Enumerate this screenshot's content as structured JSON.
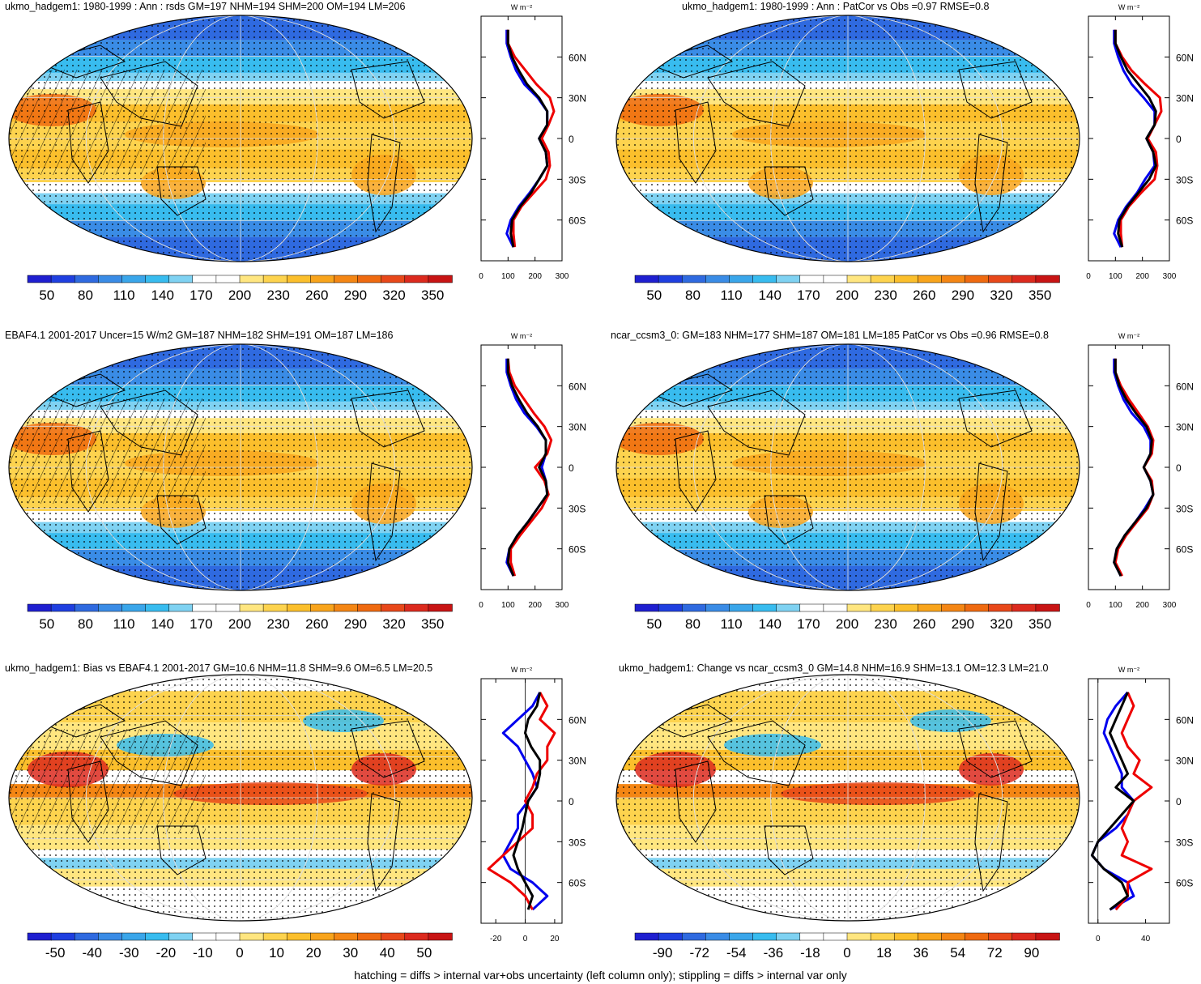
{
  "footer": "hatching = diffs > internal var+obs uncertainty (left column only); stippling = diffs > internal var only",
  "profile_unit": "W m⁻²",
  "colors": {
    "neg": [
      "#1f1fd0",
      "#1f3fe0",
      "#2f6ae0",
      "#3a8ce6",
      "#3aa6ea",
      "#38bcef",
      "#7fd2f2",
      "#ffffff"
    ],
    "pos": [
      "#ffffff",
      "#ffe680",
      "#fdd34e",
      "#fbbf2c",
      "#f8a41c",
      "#f48614",
      "#ef6a10",
      "#e8481a",
      "#dc2a1e",
      "#c81414"
    ],
    "model": "#000000",
    "obs": "#0000ee",
    "alt": "#ee0000"
  },
  "chart_data": [
    {
      "id": "p1",
      "type": "heatmap",
      "title": "ukmo_hadgem1: 1980-1999 : Ann : rsds GM=197 NHM=194 SHM=200 OM=194 LM=206",
      "colorbar_ticks": [
        "50",
        "80",
        "110",
        "140",
        "170",
        "200",
        "230",
        "260",
        "290",
        "320",
        "350"
      ],
      "colorbar_range": [
        35,
        365
      ],
      "lat_ticks": [
        "60N",
        "30N",
        "0",
        "30S",
        "60S"
      ],
      "profile_xticks": [
        "0",
        "100",
        "200",
        "300"
      ],
      "profile_xlim": [
        0,
        300
      ],
      "zonal_profile": {
        "lat": [
          80,
          70,
          60,
          50,
          40,
          30,
          20,
          10,
          0,
          -10,
          -20,
          -30,
          -40,
          -50,
          -60,
          -70,
          -80
        ],
        "black": [
          100,
          100,
          115,
          140,
          170,
          215,
          245,
          245,
          215,
          240,
          245,
          215,
          185,
          145,
          115,
          110,
          120
        ],
        "blue": [
          95,
          95,
          110,
          130,
          160,
          210,
          245,
          245,
          215,
          240,
          245,
          215,
          180,
          140,
          110,
          95,
          120
        ],
        "red": [
          100,
          100,
          125,
          165,
          205,
          255,
          270,
          250,
          225,
          250,
          255,
          240,
          195,
          150,
          120,
          120,
          125
        ]
      },
      "hatching": true
    },
    {
      "id": "p2",
      "type": "heatmap",
      "title": "ukmo_hadgem1: 1980-1999 : Ann : PatCor vs Obs =0.97 RMSE=0.8",
      "colorbar_ticks": [
        "50",
        "80",
        "110",
        "140",
        "170",
        "200",
        "230",
        "260",
        "290",
        "320",
        "350"
      ],
      "colorbar_range": [
        35,
        365
      ],
      "lat_ticks": [
        "60N",
        "30N",
        "0",
        "30S",
        "60S"
      ],
      "profile_xticks": [
        "0",
        "100",
        "200",
        "300"
      ],
      "profile_xlim": [
        0,
        300
      ],
      "zonal_profile": {
        "lat": [
          80,
          70,
          60,
          50,
          40,
          30,
          20,
          10,
          0,
          -10,
          -20,
          -30,
          -40,
          -50,
          -60,
          -70,
          -80
        ],
        "black": [
          100,
          100,
          120,
          145,
          185,
          225,
          250,
          245,
          215,
          240,
          250,
          225,
          185,
          145,
          115,
          110,
          125
        ],
        "blue": [
          95,
          95,
          110,
          130,
          160,
          205,
          245,
          245,
          215,
          240,
          245,
          210,
          180,
          140,
          110,
          95,
          120
        ],
        "red": [
          100,
          100,
          125,
          160,
          210,
          265,
          270,
          245,
          220,
          250,
          255,
          245,
          195,
          150,
          120,
          120,
          125
        ]
      },
      "hatching": false
    },
    {
      "id": "p3",
      "type": "heatmap",
      "title": "EBAF4.1 2001-2017 Uncer=15 W/m2 GM=187 NHM=182 SHM=191 OM=187 LM=186",
      "colorbar_ticks": [
        "50",
        "80",
        "110",
        "140",
        "170",
        "200",
        "230",
        "260",
        "290",
        "320",
        "350"
      ],
      "colorbar_range": [
        35,
        365
      ],
      "lat_ticks": [
        "60N",
        "30N",
        "0",
        "30S",
        "60S"
      ],
      "profile_xticks": [
        "0",
        "100",
        "200",
        "300"
      ],
      "profile_xlim": [
        0,
        300
      ],
      "zonal_profile": {
        "lat": [
          80,
          70,
          60,
          50,
          40,
          30,
          20,
          10,
          0,
          -10,
          -20,
          -30,
          -40,
          -50,
          -60,
          -70,
          -80
        ],
        "black": [
          100,
          100,
          115,
          140,
          170,
          210,
          240,
          240,
          215,
          240,
          245,
          210,
          175,
          135,
          105,
          100,
          120
        ],
        "blue": [
          95,
          95,
          110,
          130,
          160,
          205,
          240,
          240,
          225,
          240,
          245,
          210,
          175,
          135,
          105,
          95,
          120
        ],
        "red": [
          100,
          105,
          125,
          160,
          195,
          235,
          260,
          245,
          200,
          235,
          250,
          225,
          185,
          145,
          110,
          110,
          125
        ]
      },
      "hatching": true
    },
    {
      "id": "p4",
      "type": "heatmap",
      "title": "ncar_ccsm3_0: GM=183 NHM=177 SHM=187 OM=181 LM=185 PatCor vs Obs =0.96 RMSE=0.8",
      "colorbar_ticks": [
        "50",
        "80",
        "110",
        "140",
        "170",
        "200",
        "230",
        "260",
        "290",
        "320",
        "350"
      ],
      "colorbar_range": [
        35,
        365
      ],
      "lat_ticks": [
        "60N",
        "30N",
        "0",
        "30S",
        "60S"
      ],
      "profile_xticks": [
        "0",
        "100",
        "200",
        "300"
      ],
      "profile_xlim": [
        0,
        300
      ],
      "zonal_profile": {
        "lat": [
          80,
          70,
          60,
          50,
          40,
          30,
          20,
          10,
          0,
          -10,
          -20,
          -30,
          -40,
          -50,
          -60,
          -70,
          -80
        ],
        "black": [
          100,
          100,
          115,
          140,
          175,
          215,
          235,
          230,
          205,
          230,
          240,
          215,
          175,
          135,
          105,
          95,
          120
        ],
        "blue": [
          95,
          95,
          110,
          130,
          160,
          205,
          230,
          230,
          205,
          230,
          240,
          210,
          175,
          135,
          105,
          95,
          120
        ],
        "red": [
          100,
          100,
          120,
          150,
          185,
          220,
          240,
          235,
          205,
          235,
          240,
          220,
          180,
          140,
          110,
          100,
          125
        ]
      },
      "hatching": false
    },
    {
      "id": "p5",
      "type": "heatmap",
      "title": "ukmo_hadgem1: Bias vs EBAF4.1 2001-2017 GM=10.6 NHM=11.8 SHM=9.6 OM=6.5 LM=20.5",
      "colorbar_ticks": [
        "-50",
        "-40",
        "-30",
        "-20",
        "-10",
        "0",
        "10",
        "20",
        "30",
        "40",
        "50"
      ],
      "colorbar_range": [
        -57.5,
        57.5
      ],
      "lat_ticks": [
        "60N",
        "30N",
        "0",
        "30S",
        "60S"
      ],
      "profile_xticks": [
        "-20",
        "0",
        "20"
      ],
      "profile_xlim": [
        -30,
        25
      ],
      "zonal_profile": {
        "lat": [
          80,
          70,
          60,
          50,
          40,
          30,
          20,
          10,
          0,
          -10,
          -20,
          -30,
          -40,
          -50,
          -60,
          -70,
          -80
        ],
        "black": [
          10,
          8,
          2,
          0,
          4,
          10,
          10,
          8,
          2,
          0,
          -2,
          -5,
          -8,
          -5,
          0,
          5,
          2
        ],
        "blue": [
          10,
          5,
          -5,
          -15,
          -5,
          0,
          5,
          8,
          2,
          -5,
          -5,
          -10,
          -15,
          -10,
          5,
          15,
          5
        ],
        "red": [
          10,
          15,
          10,
          20,
          15,
          15,
          8,
          5,
          0,
          5,
          5,
          -5,
          -15,
          -25,
          -10,
          0,
          5
        ]
      },
      "hatching": true
    },
    {
      "id": "p6",
      "type": "heatmap",
      "title": "ukmo_hadgem1: Change vs ncar_ccsm3_0 GM=14.8 NHM=16.9 SHM=13.1 OM=12.3 LM=21.0",
      "colorbar_ticks": [
        "-90",
        "-72",
        "-54",
        "-36",
        "-18",
        "0",
        "18",
        "36",
        "54",
        "72",
        "90"
      ],
      "colorbar_range": [
        -103.5,
        103.5
      ],
      "lat_ticks": [
        "60N",
        "30N",
        "0",
        "30S",
        "60S"
      ],
      "profile_xticks": [
        "0",
        "40"
      ],
      "profile_xlim": [
        -8,
        60
      ],
      "zonal_profile": {
        "lat": [
          80,
          70,
          60,
          50,
          40,
          30,
          20,
          10,
          0,
          -10,
          -20,
          -30,
          -40,
          -50,
          -60,
          -70,
          -80
        ],
        "black": [
          25,
          20,
          15,
          10,
          15,
          20,
          25,
          15,
          30,
          20,
          10,
          0,
          -5,
          5,
          20,
          25,
          10
        ],
        "blue": [
          25,
          15,
          8,
          5,
          10,
          15,
          20,
          20,
          30,
          25,
          15,
          0,
          -5,
          5,
          25,
          30,
          10
        ],
        "red": [
          25,
          30,
          25,
          20,
          25,
          35,
          30,
          45,
          30,
          25,
          20,
          25,
          20,
          45,
          25,
          25,
          15
        ]
      },
      "hatching": false
    }
  ]
}
